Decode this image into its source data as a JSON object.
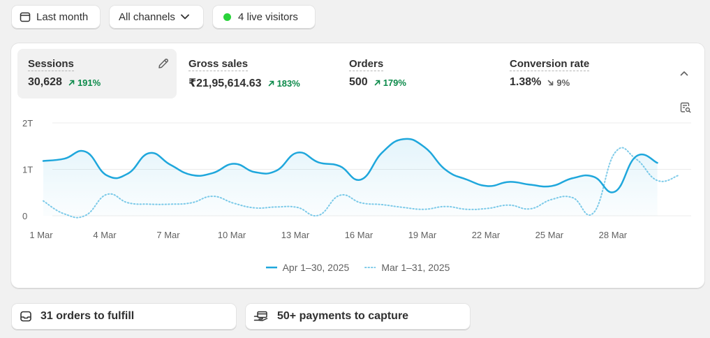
{
  "filters": {
    "date_range": {
      "label": "Last month",
      "icon": "calendar-icon"
    },
    "channels": {
      "label": "All channels",
      "icon": "chevron-down-icon"
    },
    "live": {
      "label": "4 live visitors",
      "dot_color": "#29d33a"
    }
  },
  "metrics": [
    {
      "label": "Sessions",
      "value": "30,628",
      "change": "191%",
      "direction": "up",
      "active": true
    },
    {
      "label": "Gross sales",
      "value": "₹21,95,614.63",
      "change": "183%",
      "direction": "up",
      "active": false
    },
    {
      "label": "Orders",
      "value": "500",
      "change": "179%",
      "direction": "up",
      "active": false
    },
    {
      "label": "Conversion rate",
      "value": "1.38%",
      "change": "9%",
      "direction": "down",
      "active": false
    }
  ],
  "colors": {
    "up": "#0c8a4a",
    "down": "#616161",
    "primary_series": "#1fa7dc",
    "comparison_series": "#7fcbe9"
  },
  "chart_data": {
    "type": "line",
    "x_tick_labels": [
      "1 Mar",
      "4 Mar",
      "7 Mar",
      "10 Mar",
      "13 Mar",
      "16 Mar",
      "19 Mar",
      "22 Mar",
      "25 Mar",
      "28 Mar"
    ],
    "y_tick_labels": [
      "2T",
      "1T",
      "0"
    ],
    "ylim": [
      0,
      2000
    ],
    "grid": true,
    "legend_position": "bottom",
    "series": [
      {
        "name": "Apr 1–30, 2025",
        "style": "solid",
        "x": [
          1,
          2,
          3,
          4,
          5,
          6,
          7,
          8,
          9,
          10,
          11,
          12,
          13,
          14,
          15,
          16,
          17,
          18,
          19,
          20,
          21,
          22,
          23,
          24,
          25,
          26,
          27,
          28,
          29,
          30
        ],
        "values": [
          1180,
          1230,
          1380,
          870,
          910,
          1350,
          1100,
          880,
          920,
          1120,
          940,
          970,
          1360,
          1150,
          1070,
          780,
          1360,
          1650,
          1480,
          990,
          780,
          640,
          730,
          670,
          640,
          810,
          840,
          520,
          1280,
          1140
        ]
      },
      {
        "name": "Mar 1–31, 2025",
        "style": "dotted",
        "x": [
          1,
          2,
          3,
          4,
          5,
          6,
          7,
          8,
          9,
          10,
          11,
          12,
          13,
          14,
          15,
          16,
          17,
          18,
          19,
          20,
          21,
          22,
          23,
          24,
          25,
          26,
          27,
          28,
          29,
          30,
          31
        ],
        "values": [
          320,
          40,
          10,
          460,
          280,
          250,
          250,
          280,
          420,
          270,
          170,
          190,
          180,
          10,
          440,
          280,
          240,
          180,
          140,
          200,
          140,
          160,
          230,
          150,
          350,
          390,
          70,
          1360,
          1220,
          760,
          870
        ]
      }
    ]
  },
  "tasks": [
    {
      "label": "31 orders to fulfill",
      "icon": "inbox-icon"
    },
    {
      "label": "50+ payments to capture",
      "icon": "hand-card-icon"
    }
  ]
}
